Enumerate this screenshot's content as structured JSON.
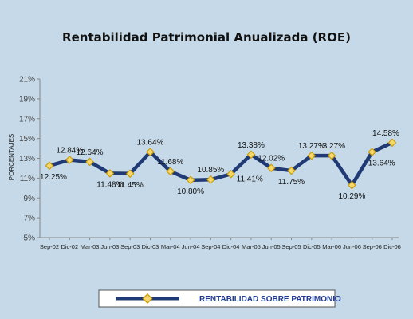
{
  "chart_data": {
    "type": "line",
    "title": "Rentabilidad Patrimonial Anualizada (ROE)",
    "ylabel": "PORCENTAJES",
    "xlabel": "",
    "ylim": [
      5,
      21
    ],
    "yticks": [
      "5%",
      "7%",
      "9%",
      "11%",
      "13%",
      "15%",
      "17%",
      "19%",
      "21%"
    ],
    "categories": [
      "Sep-02",
      "Dic-02",
      "Mar-03",
      "Jun-03",
      "Sep-03",
      "Dic-03",
      "Mar-04",
      "Jun-04",
      "Sep-04",
      "Dic-04",
      "Mar-05",
      "Jun-05",
      "Sep-05",
      "Dic-05",
      "Mar-06",
      "Jun-06",
      "Sep-06",
      "Dic-06"
    ],
    "series": [
      {
        "name": "RENTABILIDAD SOBRE PATRIMONIO",
        "values": [
          12.25,
          12.84,
          12.64,
          11.48,
          11.45,
          13.64,
          11.68,
          10.8,
          10.85,
          11.41,
          13.38,
          12.02,
          11.75,
          13.27,
          13.27,
          10.29,
          13.64,
          14.58
        ],
        "labels": [
          "12.25%",
          "12.84%",
          "12.64%",
          "11.48%",
          "11.45%",
          "13.64%",
          "11.68%",
          "10.80%",
          "10.85%",
          "11.41%",
          "13.38%",
          "12.02%",
          "11.75%",
          "13.27%",
          "13.27%",
          "10.29%",
          "13.64%",
          "14.58%"
        ],
        "label_positions": [
          "below",
          "above",
          "above",
          "below",
          "below",
          "above",
          "above",
          "below",
          "above",
          "right",
          "above",
          "above",
          "below",
          "above",
          "above",
          "below",
          "below",
          "above"
        ]
      }
    ],
    "grid": false,
    "legend": "bottom",
    "colors": {
      "background": "#c5d9e8",
      "line": "#1f3a75",
      "marker_fill": "#f5d76e",
      "marker_edge": "#c99a00",
      "axis": "#888888",
      "legend_text": "#1f3a93"
    }
  }
}
